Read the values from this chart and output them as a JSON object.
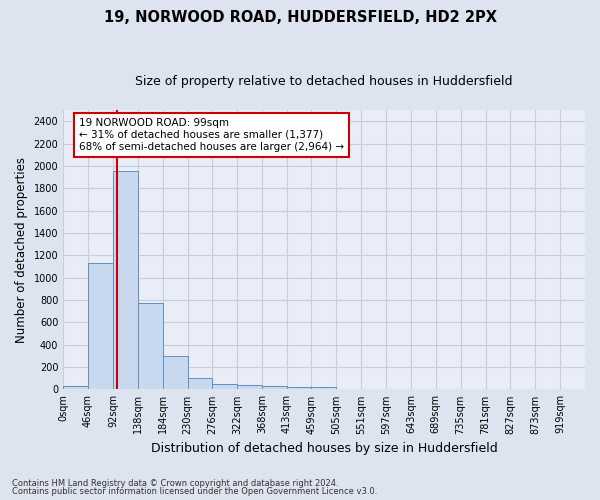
{
  "title": "19, NORWOOD ROAD, HUDDERSFIELD, HD2 2PX",
  "subtitle": "Size of property relative to detached houses in Huddersfield",
  "xlabel": "Distribution of detached houses by size in Huddersfield",
  "ylabel": "Number of detached properties",
  "footnote1": "Contains HM Land Registry data © Crown copyright and database right 2024.",
  "footnote2": "Contains public sector information licensed under the Open Government Licence v3.0.",
  "bar_edges": [
    0,
    46,
    92,
    138,
    184,
    230,
    276,
    322,
    368,
    413,
    459,
    505,
    551,
    597,
    643,
    689,
    735,
    781,
    827,
    873,
    919,
    965
  ],
  "bar_heights": [
    35,
    1130,
    1950,
    770,
    300,
    105,
    50,
    40,
    35,
    22,
    18,
    0,
    0,
    0,
    0,
    0,
    0,
    0,
    0,
    0,
    0
  ],
  "bar_color": "#c8d8ee",
  "bar_edge_color": "#6090c0",
  "property_x": 99,
  "property_line_color": "#cc0000",
  "annotation_text": "19 NORWOOD ROAD: 99sqm\n← 31% of detached houses are smaller (1,377)\n68% of semi-detached houses are larger (2,964) →",
  "annotation_box_color": "#cc0000",
  "ylim": [
    0,
    2500
  ],
  "yticks": [
    0,
    200,
    400,
    600,
    800,
    1000,
    1200,
    1400,
    1600,
    1800,
    2000,
    2200,
    2400
  ],
  "xlim": [
    0,
    965
  ],
  "bg_color": "#dde4f0",
  "axes_bg_color": "#e8edf8",
  "grid_color": "#c8cdd8",
  "title_fontsize": 10.5,
  "subtitle_fontsize": 9,
  "tick_label_fontsize": 7,
  "ylabel_fontsize": 8.5,
  "xlabel_fontsize": 9,
  "annotation_fontsize": 7.5
}
